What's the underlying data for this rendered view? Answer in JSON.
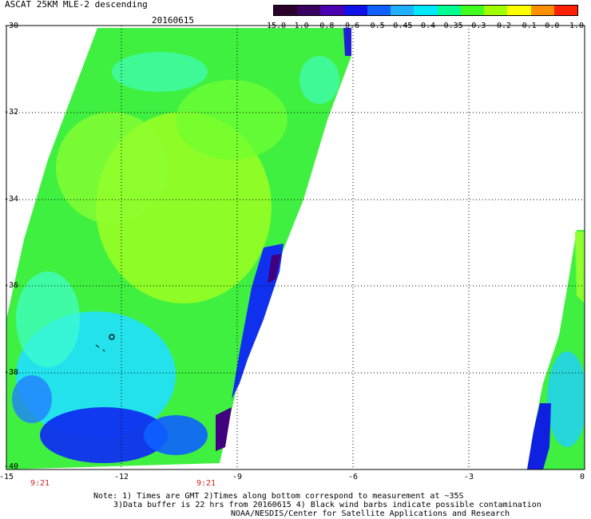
{
  "header": {
    "title": "ASCAT 25KM MLE-2 descending",
    "date": "20160615"
  },
  "colorbar": {
    "labels": [
      "-15.0",
      "-1.0",
      "-0.8",
      "-0.6",
      "-0.5",
      "-0.45",
      "-0.4",
      "-0.35",
      "-0.3",
      "-0.2",
      "-0.1",
      "0.0",
      "1.0"
    ],
    "colors": [
      "#2a002a",
      "#3a0060",
      "#4a00b0",
      "#1010e8",
      "#1060ff",
      "#20b0ff",
      "#00e8ff",
      "#00ff90",
      "#40ff20",
      "#a0ff00",
      "#ffff00",
      "#ff9000",
      "#ff2000"
    ]
  },
  "map": {
    "y_labels": [
      "-30",
      "-32",
      "-34",
      "-36",
      "-38",
      "-40"
    ],
    "x_labels": [
      "-15",
      "-12",
      "-9",
      "-6",
      "-3",
      "0"
    ],
    "time_labels": [
      "9:21",
      "9:21"
    ]
  },
  "notes": {
    "line1": "Note: 1) Times are GMT 2)Times along bottom correspond to measurement at ~35S",
    "line2": "3)Data buffer is 22 hrs from 20160615 4) Black wind barbs indicate possible contamination",
    "line3": "NOAA/NESDIS/Center for Satellite Applications and Research"
  }
}
